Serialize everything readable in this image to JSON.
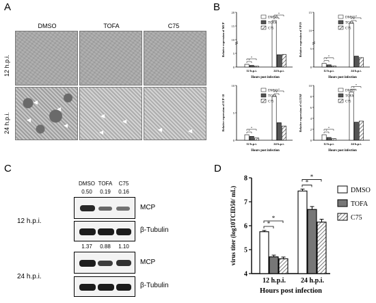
{
  "panels": {
    "A": {
      "letter": "A",
      "columns": [
        "DMSO",
        "TOFA",
        "C75"
      ],
      "rows": [
        "12 h.p.i.",
        "24 h.p.i."
      ]
    },
    "B": {
      "letter": "B",
      "x_title": "Hours post infection",
      "legend": [
        "DMSO",
        "TOFA",
        "C75"
      ]
    },
    "C": {
      "letter": "C",
      "lanes": [
        "DMSO",
        "TOFA",
        "C75"
      ],
      "blocks": [
        {
          "time": "12 h.p.i.",
          "values": [
            "0.50",
            "0.19",
            "0.16"
          ],
          "target": "MCP",
          "control": "β-Tubulin"
        },
        {
          "time": "24 h.p.i.",
          "values": [
            "1.37",
            "0.88",
            "1.10"
          ],
          "target": "MCP",
          "control": "β-Tubulin"
        }
      ]
    },
    "D": {
      "letter": "D"
    }
  },
  "chart_data": [
    {
      "type": "bar",
      "panel": "B-MCP",
      "categories": [
        "12 h.p.i.",
        "24 h.p.i."
      ],
      "series": [
        {
          "name": "DMSO",
          "values": [
            1.0,
            17.0
          ]
        },
        {
          "name": "TOFA",
          "values": [
            0.6,
            4.5
          ]
        },
        {
          "name": "C75",
          "values": [
            0.3,
            4.6
          ]
        }
      ],
      "ylabel": "Relative expression of MCP",
      "xlabel": "Hours post infection",
      "ylim": [
        0,
        20
      ],
      "yticks": [
        0,
        5,
        10,
        15,
        20
      ],
      "axis_break": true,
      "significance": "*"
    },
    {
      "type": "bar",
      "panel": "B-VP19",
      "categories": [
        "12 h.p.i.",
        "24 h.p.i."
      ],
      "series": [
        {
          "name": "DMSO",
          "values": [
            1.0,
            12.0
          ]
        },
        {
          "name": "TOFA",
          "values": [
            0.6,
            3.0
          ]
        },
        {
          "name": "C75",
          "values": [
            0.3,
            2.6
          ]
        }
      ],
      "ylabel": "Relative expression of VP19",
      "xlabel": "Hours post infection",
      "ylim": [
        0,
        15
      ],
      "yticks": [
        0,
        5,
        10,
        15
      ],
      "axis_break": true,
      "significance": "*"
    },
    {
      "type": "bar",
      "panel": "B-ICP-18",
      "categories": [
        "12 h.p.i.",
        "24 h.p.i."
      ],
      "series": [
        {
          "name": "DMSO",
          "values": [
            1.0,
            8.0
          ]
        },
        {
          "name": "TOFA",
          "values": [
            0.7,
            3.2
          ]
        },
        {
          "name": "C75",
          "values": [
            0.4,
            2.6
          ]
        }
      ],
      "ylabel": "Relative expression of ICP-18",
      "xlabel": "Hours post infection",
      "ylim": [
        0,
        10
      ],
      "yticks": [
        0,
        5,
        10
      ],
      "significance": "*"
    },
    {
      "type": "bar",
      "panel": "B-vLITAF",
      "categories": [
        "12 h.p.i.",
        "24 h.p.i."
      ],
      "series": [
        {
          "name": "DMSO",
          "values": [
            1.0,
            8.8
          ]
        },
        {
          "name": "TOFA",
          "values": [
            0.5,
            3.3
          ]
        },
        {
          "name": "C75",
          "values": [
            0.3,
            3.5
          ]
        }
      ],
      "ylabel": "Relative expression of vLITAF",
      "xlabel": "Hours post infection",
      "ylim": [
        0,
        10
      ],
      "yticks": [
        0,
        2,
        4,
        6,
        8,
        10
      ],
      "significance": "*"
    },
    {
      "type": "bar",
      "panel": "D",
      "categories": [
        "12 h.p.i.",
        "24 h.p.i."
      ],
      "series": [
        {
          "name": "DMSO",
          "values": [
            5.75,
            7.45
          ]
        },
        {
          "name": "TOFA",
          "values": [
            4.7,
            6.68
          ]
        },
        {
          "name": "C75",
          "values": [
            4.62,
            6.15
          ]
        }
      ],
      "errors": [
        [
          0.05,
          0.08
        ],
        [
          0.07,
          0.12
        ],
        [
          0.07,
          0.12
        ]
      ],
      "ylabel": "virus titer (log10TCID50/ mL)",
      "xlabel": "Hours post infection",
      "ylim": [
        4,
        8
      ],
      "yticks": [
        4,
        5,
        6,
        7,
        8
      ],
      "legend": "right",
      "significance": "*"
    }
  ]
}
